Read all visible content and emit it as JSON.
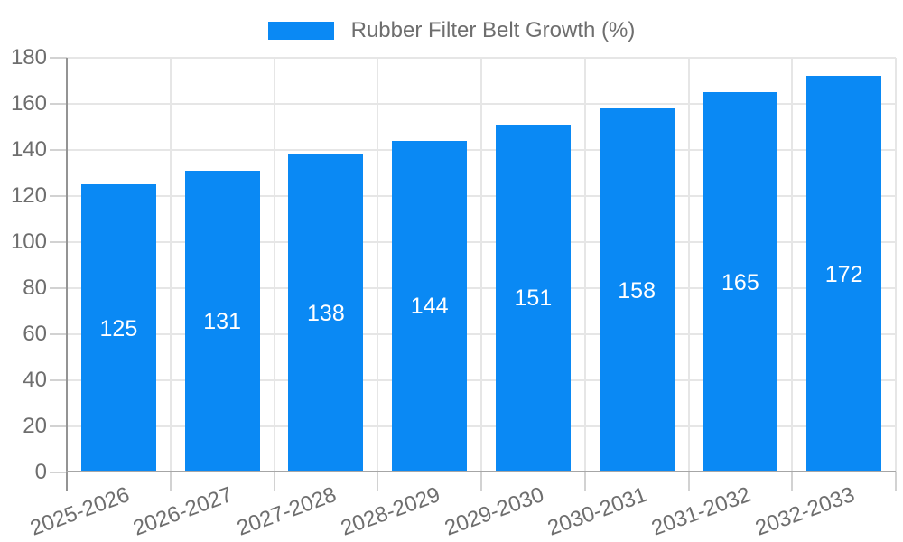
{
  "legend": {
    "label": "Rubber Filter Belt Growth (%)"
  },
  "chart_data": {
    "type": "bar",
    "title": "",
    "categories": [
      "2025-2026",
      "2026-2027",
      "2027-2028",
      "2028-2029",
      "2029-2030",
      "2030-2031",
      "2031-2032",
      "2032-2033"
    ],
    "series": [
      {
        "name": "Rubber Filter Belt Growth (%)",
        "values": [
          125,
          131,
          138,
          144,
          151,
          158,
          165,
          172
        ]
      }
    ],
    "xlabel": "",
    "ylabel": "",
    "ylim": [
      0,
      180
    ],
    "yticks": [
      0,
      20,
      40,
      60,
      80,
      100,
      120,
      140,
      160,
      180
    ],
    "grid": true,
    "legend_position": "top",
    "value_labels_position": "inside-center"
  },
  "colors": {
    "bar": "#0a89f4",
    "grid": "#e6e6e6",
    "tick": "#d2d2d2",
    "y_axis_line": "#949494",
    "baseline": "#a6a6a6",
    "axis_text": "#6e6e6e",
    "value_text": "#ffffff",
    "background": "#ffffff"
  }
}
